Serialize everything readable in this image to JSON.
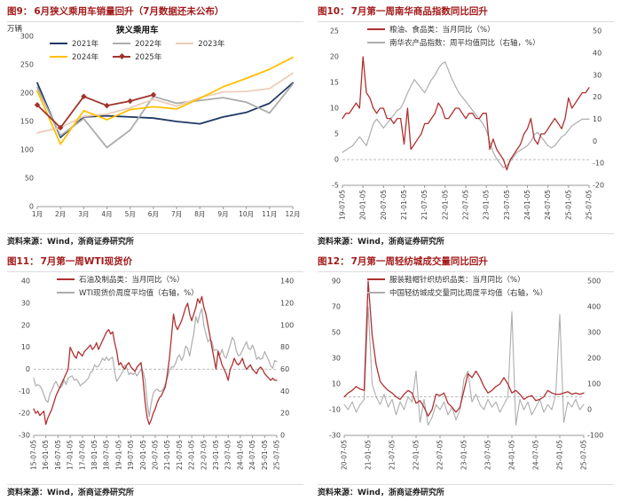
{
  "page": {
    "background": "#ffffff",
    "title_color": "#A31A1A"
  },
  "chart_data": [
    {
      "id": "fig9",
      "type": "line",
      "fig_label": "图9：",
      "title": "6月狭义乘用车销量回升（7月数据还未公布）",
      "unit_label": "万辆",
      "legend_title": "狭义乘用车",
      "legend_position": "top-center",
      "source": "资料来源：Wind，浙商证券研究所",
      "categories": [
        "1月",
        "2月",
        "3月",
        "4月",
        "5月",
        "6月",
        "7月",
        "8月",
        "9月",
        "10月",
        "11月",
        "12月"
      ],
      "left_axis": {
        "min": 0,
        "max": 300,
        "ticks": [
          0,
          50,
          100,
          150,
          200,
          250,
          300
        ]
      },
      "grid": false,
      "zero_line": false,
      "series": [
        {
          "name": "2021年",
          "color": "#1F3864",
          "axis": "left",
          "lw": 1.8,
          "values": [
            218,
            122,
            158,
            160,
            158,
            156,
            150,
            146,
            158,
            166,
            182,
            218
          ]
        },
        {
          "name": "2022年",
          "color": "#ACACAC",
          "axis": "left",
          "lw": 1.8,
          "values": [
            210,
            125,
            155,
            104,
            135,
            194,
            182,
            187,
            192,
            184,
            165,
            216
          ]
        },
        {
          "name": "2023年",
          "color": "#EBCDB9",
          "axis": "left",
          "lw": 1.8,
          "values": [
            130,
            139,
            159,
            163,
            174,
            189,
            177,
            192,
            202,
            203,
            208,
            235
          ]
        },
        {
          "name": "2024年",
          "color": "#FFC000",
          "axis": "left",
          "lw": 1.8,
          "values": [
            204,
            110,
            169,
            153,
            171,
            176,
            172,
            191,
            211,
            226,
            242,
            263
          ]
        },
        {
          "name": "2025年",
          "color": "#A0342C",
          "axis": "left",
          "lw": 1.8,
          "marker": "diamond",
          "values": [
            179,
            139,
            194,
            178,
            186,
            197
          ]
        }
      ]
    },
    {
      "id": "fig10",
      "type": "line",
      "fig_label": "图10：",
      "title": "7月第一周南华商品指数同比回升",
      "legend_position": "top-left",
      "source": "资料来源：Wind，浙商证券研究所",
      "x_tick_labels": [
        "19-07-05",
        "20-01-05",
        "20-07-05",
        "21-01-05",
        "21-07-05",
        "22-01-05",
        "22-07-05",
        "23-01-05",
        "23-07-05",
        "24-01-05",
        "24-07-05",
        "25-01-05",
        "25-07-05"
      ],
      "left_axis": {
        "min": -5,
        "max": 25,
        "ticks": [
          -5,
          0,
          5,
          10,
          15,
          20,
          25
        ]
      },
      "right_axis": {
        "min": -20,
        "max": 50,
        "ticks": [
          -20,
          -10,
          0,
          10,
          20,
          30,
          40,
          50
        ]
      },
      "grid": false,
      "zero_line": true,
      "series": [
        {
          "name": "粮油、食品类：当月同比（%）",
          "color": "#B03030",
          "axis": "left",
          "lw": 1.3,
          "values": [
            8,
            9,
            9,
            10,
            11,
            10,
            20,
            13,
            12,
            10,
            9,
            10,
            10,
            8,
            8,
            7,
            8,
            8,
            3,
            10,
            2,
            3,
            4,
            5,
            7,
            7,
            8,
            9,
            11,
            10,
            8,
            8,
            9,
            10,
            10,
            9,
            8,
            9,
            9,
            8,
            8,
            9,
            9,
            2,
            4,
            2,
            1,
            0,
            -2,
            0,
            1,
            2,
            3,
            5,
            6,
            8,
            4,
            3,
            5,
            5,
            6,
            7,
            8,
            7,
            6,
            8,
            12,
            10,
            11,
            12,
            13,
            13,
            14
          ]
        },
        {
          "name": "南华农产品指数：周平均值同比（右轴，%）",
          "color": "#ADADAD",
          "axis": "right",
          "lw": 1.2,
          "values": [
            -5,
            -4,
            -3,
            -2,
            0,
            2,
            0,
            -2,
            3,
            8,
            10,
            8,
            6,
            8,
            10,
            12,
            14,
            15,
            18,
            22,
            25,
            28,
            26,
            24,
            22,
            25,
            28,
            30,
            33,
            35,
            36,
            32,
            28,
            25,
            22,
            20,
            18,
            16,
            14,
            12,
            10,
            8,
            5,
            0,
            -5,
            -8,
            -10,
            -12,
            -11,
            -9,
            -7,
            -5,
            -4,
            -3,
            -2,
            0,
            3,
            4,
            2,
            0,
            -2,
            -3,
            -2,
            0,
            2,
            3,
            5,
            7,
            8,
            9,
            10,
            10,
            10
          ]
        }
      ]
    },
    {
      "id": "fig11",
      "type": "line",
      "fig_label": "图11：",
      "title": "7月第一周WTI现货价",
      "legend_position": "top-left",
      "source": "资料来源：Wind，浙商证券研究所",
      "x_tick_labels": [
        "15-07-05",
        "16-01-05",
        "16-07-05",
        "17-01-05",
        "17-07-05",
        "18-01-05",
        "18-07-05",
        "19-01-05",
        "19-07-05",
        "20-01-05",
        "20-07-05",
        "21-01-05",
        "21-07-05",
        "22-01-05",
        "22-07-05",
        "23-01-05",
        "23-07-05",
        "24-01-05",
        "24-07-05",
        "25-01-05",
        "25-07-05"
      ],
      "left_axis": {
        "min": -30,
        "max": 40,
        "ticks": [
          -30,
          -20,
          -10,
          0,
          10,
          20,
          30,
          40
        ]
      },
      "right_axis": {
        "min": 0,
        "max": 140,
        "ticks": [
          0,
          20,
          40,
          60,
          80,
          100,
          120,
          140
        ]
      },
      "grid": false,
      "zero_line": true,
      "series": [
        {
          "name": "石油及制品类：当月同比（%）",
          "color": "#B03030",
          "axis": "left",
          "lw": 1.3,
          "values": [
            -18,
            -20,
            -19,
            -21,
            -20,
            -19,
            -25,
            -22,
            -20,
            -18,
            -15,
            -12,
            -10,
            -8,
            -6,
            -4,
            -2,
            0,
            10,
            8,
            6,
            5,
            8,
            7,
            6,
            8,
            9,
            10,
            11,
            9,
            10,
            12,
            9,
            11,
            13,
            15,
            17,
            18,
            16,
            17,
            12,
            8,
            2,
            3,
            1,
            0,
            2,
            3,
            1,
            0,
            -1,
            1,
            2,
            3,
            -5,
            -15,
            -22,
            -25,
            -23,
            -20,
            -18,
            -15,
            -13,
            -12,
            -10,
            -8,
            -2,
            5,
            15,
            25,
            20,
            18,
            20,
            22,
            25,
            28,
            30,
            25,
            22,
            25,
            28,
            32,
            30,
            33,
            28,
            25,
            20,
            15,
            10,
            5,
            0,
            8,
            5,
            2,
            0,
            -2,
            -5,
            0,
            2,
            5,
            3,
            2,
            3,
            5,
            2,
            0,
            1,
            2,
            0,
            -1,
            -2,
            0,
            1,
            0,
            -2,
            -3,
            -4,
            -5,
            -4,
            -5,
            -5
          ]
        },
        {
          "name": "WTI现货价周度平均值（右轴，%）",
          "color": "#ADADAD",
          "axis": "right",
          "lw": 1.2,
          "values": [
            52,
            45,
            46,
            45,
            42,
            37,
            32,
            30,
            38,
            41,
            46,
            49,
            45,
            43,
            45,
            50,
            46,
            52,
            53,
            54,
            50,
            51,
            49,
            45,
            47,
            48,
            50,
            52,
            57,
            58,
            64,
            62,
            63,
            66,
            70,
            68,
            71,
            68,
            70,
            71,
            57,
            49,
            52,
            55,
            58,
            64,
            61,
            55,
            57,
            55,
            57,
            54,
            57,
            60,
            58,
            50,
            30,
            17,
            29,
            38,
            41,
            42,
            40,
            40,
            42,
            47,
            52,
            59,
            62,
            62,
            65,
            71,
            73,
            68,
            72,
            81,
            79,
            72,
            83,
            92,
            108,
            102,
            110,
            115,
            100,
            92,
            85,
            87,
            85,
            77,
            78,
            77,
            73,
            78,
            72,
            70,
            76,
            82,
            89,
            86,
            77,
            72,
            73,
            77,
            81,
            85,
            79,
            78,
            82,
            77,
            69,
            71,
            69,
            70,
            76,
            72,
            68,
            63,
            61,
            68,
            67
          ]
        }
      ]
    },
    {
      "id": "fig12",
      "type": "line",
      "fig_label": "图12：",
      "title": "7月第一周轻纺城成交量同比回升",
      "legend_position": "top-left",
      "source": "资料来源：Wind，浙商证券研究所",
      "x_tick_labels": [
        "20-07-05",
        "21-01-05",
        "21-07-05",
        "22-01-05",
        "22-07-05",
        "23-01-05",
        "23-07-05",
        "24-01-05",
        "24-07-05",
        "25-01-05",
        "25-07-05"
      ],
      "left_axis": {
        "min": -30,
        "max": 90,
        "ticks": [
          -30,
          -10,
          10,
          30,
          50,
          70,
          90
        ]
      },
      "right_axis": {
        "min": -100,
        "max": 500,
        "ticks": [
          -100,
          0,
          100,
          200,
          300,
          400,
          500
        ]
      },
      "grid": false,
      "zero_line": true,
      "series": [
        {
          "name": "服装鞋帽针织纺织品类：当月同比（%）",
          "color": "#B03030",
          "axis": "left",
          "lw": 1.3,
          "values": [
            0,
            3,
            5,
            8,
            6,
            5,
            90,
            48,
            25,
            12,
            8,
            5,
            3,
            0,
            -2,
            2,
            5,
            3,
            -5,
            -3,
            -8,
            -15,
            -10,
            2,
            1,
            3,
            -5,
            -8,
            -12,
            -8,
            5,
            18,
            15,
            20,
            15,
            8,
            3,
            5,
            8,
            10,
            15,
            10,
            3,
            5,
            2,
            -2,
            0,
            1,
            -3,
            -2,
            0,
            5,
            3,
            2,
            2,
            3,
            4,
            2,
            3,
            2,
            3
          ]
        },
        {
          "name": "中国轻纺城成交量同比周度平均值（右轴，%）",
          "color": "#ADADAD",
          "axis": "right",
          "lw": 1.1,
          "values": [
            20,
            0,
            30,
            -10,
            20,
            40,
            400,
            100,
            50,
            20,
            60,
            10,
            40,
            -20,
            30,
            0,
            50,
            30,
            150,
            -50,
            40,
            -60,
            -30,
            20,
            0,
            30,
            -20,
            10,
            -40,
            0,
            120,
            150,
            30,
            60,
            20,
            0,
            40,
            10,
            30,
            -10,
            20,
            50,
            380,
            -60,
            40,
            0,
            30,
            -20,
            10,
            40,
            -10,
            20,
            0,
            60,
            370,
            -50,
            30,
            10,
            40,
            0,
            20
          ]
        }
      ]
    }
  ]
}
